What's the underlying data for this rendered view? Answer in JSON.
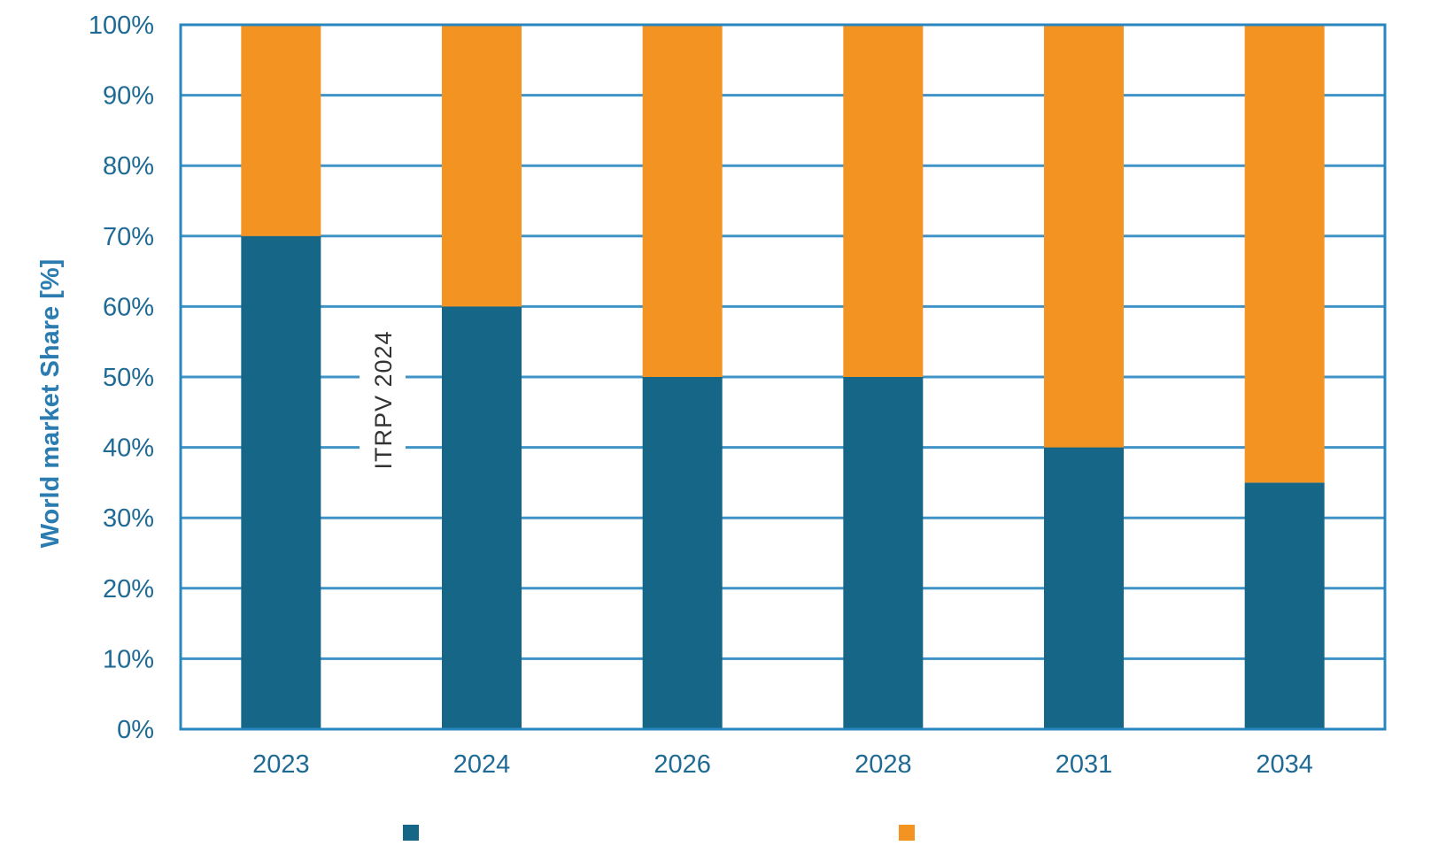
{
  "chart_data": {
    "type": "bar",
    "stacked": true,
    "normalized_percent": true,
    "title": "",
    "xlabel": "",
    "ylabel": "World market Share [%]",
    "ylim": [
      0,
      100
    ],
    "y_ticks": [
      "0%",
      "10%",
      "20%",
      "30%",
      "40%",
      "50%",
      "60%",
      "70%",
      "80%",
      "90%",
      "100%"
    ],
    "categories": [
      "2023",
      "2024",
      "2026",
      "2028",
      "2031",
      "2034"
    ],
    "series": [
      {
        "name": "",
        "color": "#156687",
        "values": [
          70,
          60,
          50,
          50,
          40,
          35
        ]
      },
      {
        "name": "",
        "color": "#f39322",
        "values": [
          30,
          40,
          50,
          50,
          60,
          65
        ]
      }
    ],
    "grid": true,
    "legend_position": "bottom",
    "watermark": "ITRPV 2024"
  },
  "colors": {
    "axis": "#2a86bf",
    "grid": "#3f93c7",
    "series_1": "#156687",
    "series_2": "#f39322"
  }
}
